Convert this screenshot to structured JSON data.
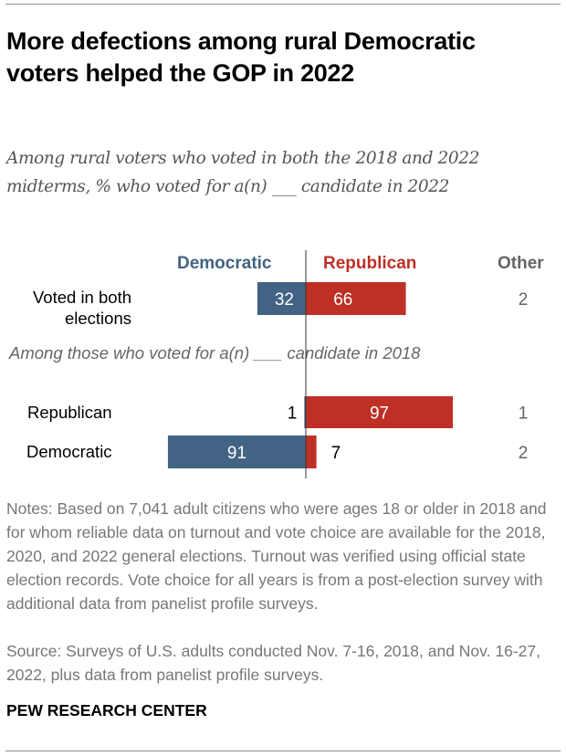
{
  "header": {
    "title": "More defections among rural Democratic voters helped the GOP in 2022",
    "subtitle": "Among rural voters who voted in both the 2018 and 2022 midterms, % who voted for a(n) ___ candidate in 2022"
  },
  "colors": {
    "democratic": "#436384",
    "republican": "#BE2F26",
    "other": "#666666",
    "axis": "#333333"
  },
  "chart_data": {
    "type": "bar",
    "orientation": "horizontal-diverging",
    "title": "More defections among rural Democratic voters helped the GOP in 2022",
    "subtitle": "Among rural voters who voted in both the 2018 and 2022 midterms, % who voted for a(n) ___ candidate in 2022",
    "column_headers": [
      "Democratic",
      "Republican",
      "Other"
    ],
    "group_label": "Among those who voted for a(n) ___ candidate in 2018",
    "categories": [
      "Voted in both elections",
      "Republican",
      "Democratic"
    ],
    "series": [
      {
        "name": "Democratic",
        "values": [
          32,
          1,
          91
        ]
      },
      {
        "name": "Republican",
        "values": [
          66,
          97,
          7
        ]
      },
      {
        "name": "Other",
        "values": [
          2,
          1,
          2
        ]
      }
    ],
    "units": "%"
  },
  "footer": {
    "notes": "Notes: Based on 7,041 adult citizens who were ages 18 or older in 2018 and for whom reliable data on turnout and vote choice are available for the 2018, 2020, and 2022 general elections. Turnout was verified using official state election records. Vote choice for all years is from a post-election survey with additional data from panelist profile surveys.",
    "source": "Source: Surveys of U.S. adults conducted Nov. 7-16, 2018, and Nov. 16-27, 2022, plus data from panelist profile surveys.",
    "logo": "PEW RESEARCH CENTER"
  }
}
